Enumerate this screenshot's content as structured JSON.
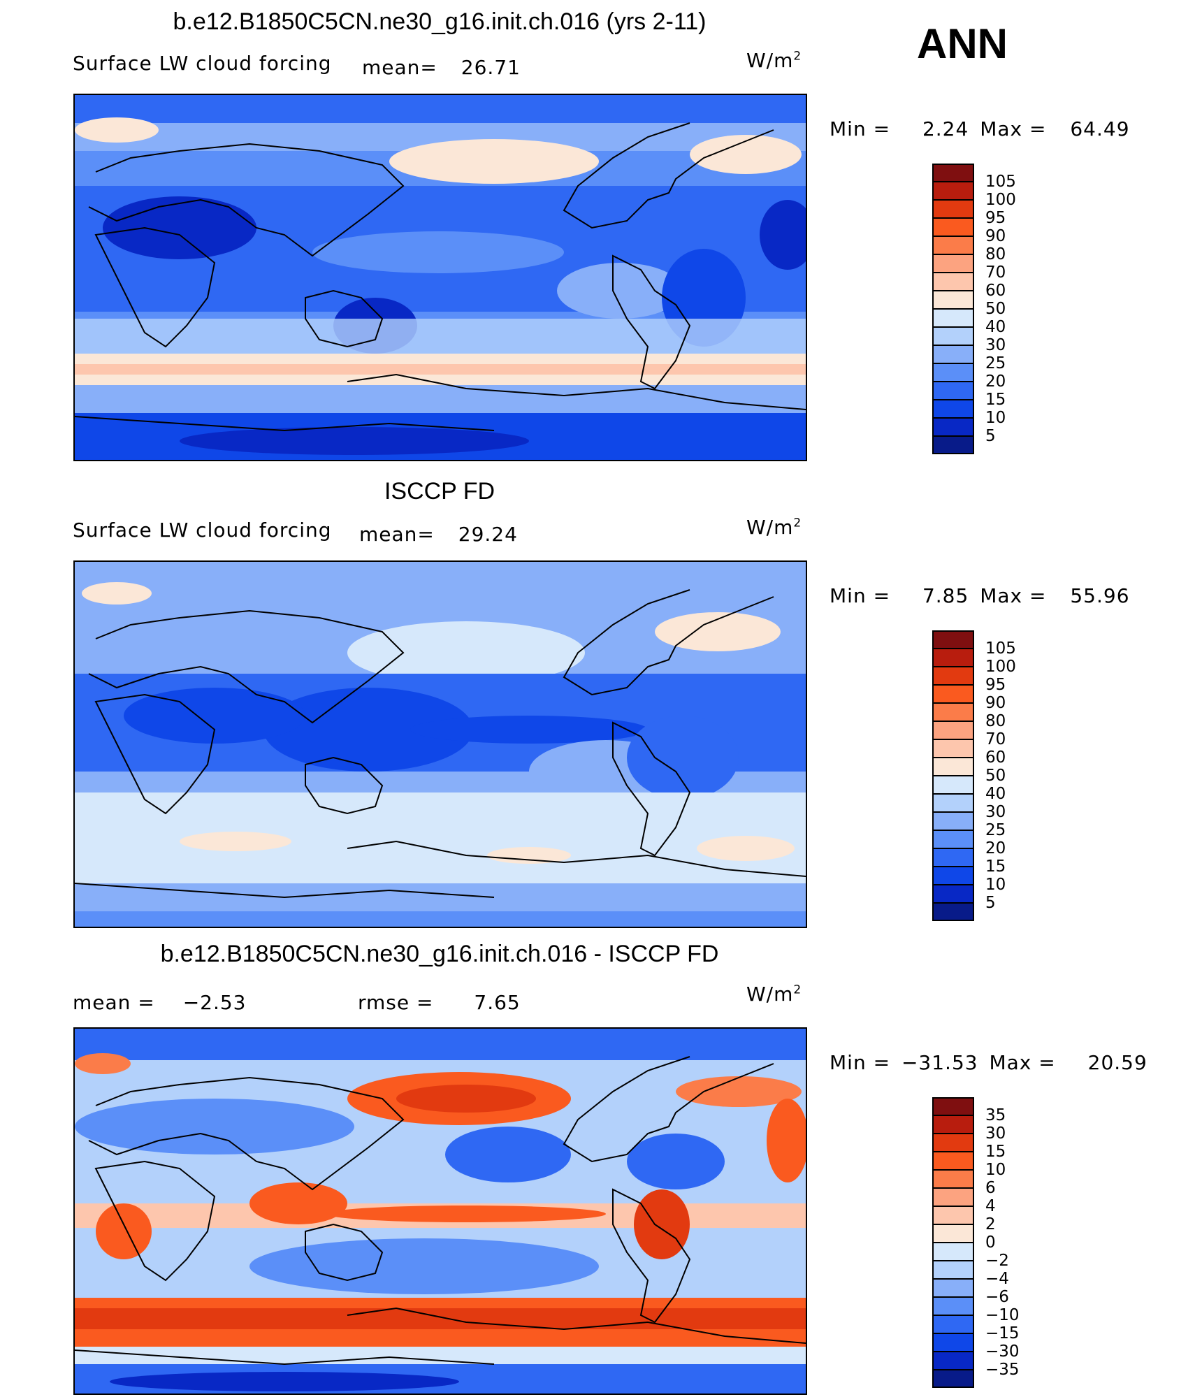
{
  "page": {
    "season": "ANN",
    "unit_base": "W/m",
    "unit_exp": "2"
  },
  "panels": [
    {
      "title": "b.e12.B1850C5CN.ne30_g16.init.ch.016 (yrs 2-11)",
      "variable": "Surface LW cloud forcing",
      "mean_label": "mean=",
      "mean_value": "26.71",
      "minmax_min_label": "Min =",
      "min_value": "2.24",
      "minmax_max_label": "Max =",
      "max_value": "64.49",
      "colorbar_labels": [
        "105",
        "100",
        "95",
        "90",
        "80",
        "70",
        "60",
        "50",
        "40",
        "30",
        "25",
        "20",
        "15",
        "10",
        "5"
      ]
    },
    {
      "title": "ISCCP FD",
      "variable": "Surface LW cloud forcing",
      "mean_label": "mean=",
      "mean_value": "29.24",
      "minmax_min_label": "Min =",
      "min_value": "7.85",
      "minmax_max_label": "Max =",
      "max_value": "55.96",
      "colorbar_labels": [
        "105",
        "100",
        "95",
        "90",
        "80",
        "70",
        "60",
        "50",
        "40",
        "30",
        "25",
        "20",
        "15",
        "10",
        "5"
      ]
    },
    {
      "title": "b.e12.B1850C5CN.ne30_g16.init.ch.016 - ISCCP FD",
      "mean_label": "mean =",
      "mean_value": "−2.53",
      "rmse_label": "rmse =",
      "rmse_value": "7.65",
      "minmax_min_label": "Min =",
      "min_value": "−31.53",
      "minmax_max_label": "Max =",
      "max_value": "20.59",
      "colorbar_labels": [
        "35",
        "30",
        "15",
        "10",
        "6",
        "4",
        "2",
        "0",
        "−2",
        "−4",
        "−6",
        "−10",
        "−15",
        "−30",
        "−35"
      ]
    }
  ],
  "colors": {
    "scale": [
      "#7f0f10",
      "#b81d0e",
      "#e23a10",
      "#fa5a1f",
      "#fb7c49",
      "#fca380",
      "#fdc6ad",
      "#fbe7d7",
      "#d6e8fb",
      "#b3d1fb",
      "#88aff9",
      "#5b8ff8",
      "#2f68f3",
      "#0f47e8",
      "#0828c5",
      "#081b89"
    ]
  },
  "chart_data": [
    {
      "type": "heatmap",
      "title": "b.e12.B1850C5CN.ne30_g16.init.ch.016 (yrs 2-11)",
      "subtitle": "Surface LW cloud forcing",
      "units": "W/m2",
      "mean": 26.71,
      "min": 2.24,
      "max": 64.49,
      "colorbar_levels": [
        5,
        10,
        15,
        20,
        25,
        30,
        40,
        50,
        60,
        70,
        80,
        90,
        95,
        100,
        105
      ],
      "map": "global cylindrical equidistant, centered on Pacific"
    },
    {
      "type": "heatmap",
      "title": "ISCCP FD",
      "subtitle": "Surface LW cloud forcing",
      "units": "W/m2",
      "mean": 29.24,
      "min": 7.85,
      "max": 55.96,
      "colorbar_levels": [
        5,
        10,
        15,
        20,
        25,
        30,
        40,
        50,
        60,
        70,
        80,
        90,
        95,
        100,
        105
      ],
      "map": "global cylindrical equidistant, centered on Pacific"
    },
    {
      "type": "heatmap",
      "title": "b.e12.B1850C5CN.ne30_g16.init.ch.016 - ISCCP FD",
      "units": "W/m2",
      "mean": -2.53,
      "rmse": 7.65,
      "min": -31.53,
      "max": 20.59,
      "colorbar_levels": [
        -35,
        -30,
        -15,
        -10,
        -6,
        -4,
        -2,
        0,
        2,
        4,
        6,
        10,
        15,
        30,
        35
      ],
      "map": "global cylindrical equidistant, centered on Pacific"
    }
  ]
}
